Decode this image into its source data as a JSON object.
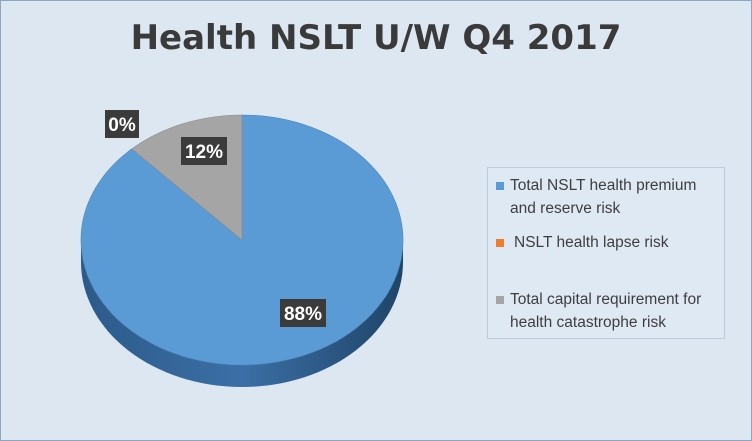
{
  "chart_data": {
    "type": "pie",
    "title": "Health NSLT U/W Q4 2017",
    "legend_position": "right",
    "series": [
      {
        "name": "Total NSLT health premium and reserve risk",
        "value": 88,
        "label": "88%",
        "color": "#5b9bd5"
      },
      {
        "name": "NSLT health lapse risk",
        "value": 0,
        "label": "0%",
        "color": "#ed7d31"
      },
      {
        "name": "Total capital requirement for health catastrophe risk",
        "value": 12,
        "label": "12%",
        "color": "#a5a5a5"
      }
    ]
  },
  "colors": {
    "background": "#dce7f2",
    "label_box": "#3b3b3b",
    "label_text": "#ffffff",
    "title_text": "#3a3a3a"
  }
}
